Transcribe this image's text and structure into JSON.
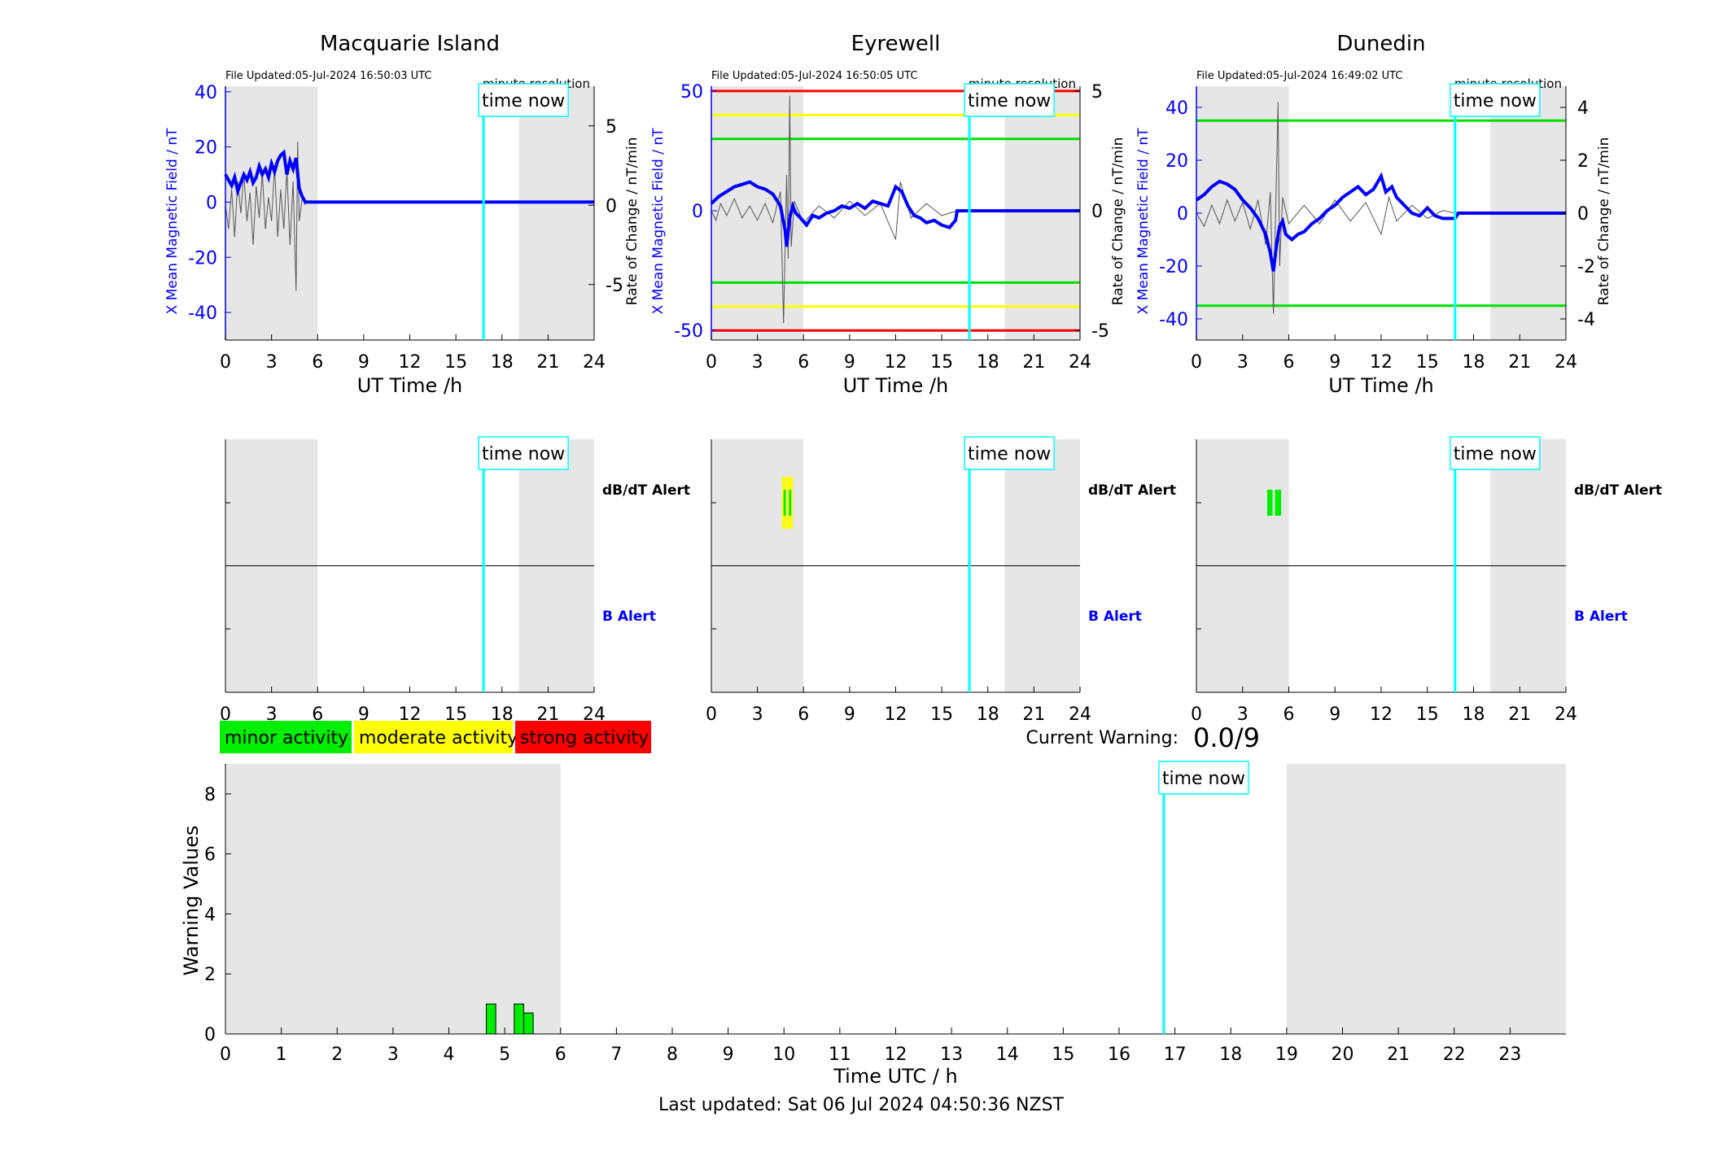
{
  "stations": [
    {
      "name": "Macquarie Island",
      "file_updated": "File Updated:05-Jul-2024 16:50:03 UTC",
      "resolution": "minute resolution",
      "time_now_label": "time now",
      "y_left_label": "X Mean Magnetic Field / nT",
      "y_right_label": "Rate of Change / nT/min",
      "x_label": "UT Time /h",
      "ylim": [
        -50,
        42
      ],
      "y_ticks": [
        40,
        20,
        0,
        -20,
        -40
      ],
      "y2lim": [
        -8.5,
        7.5
      ],
      "y2_ticks": [
        5,
        0,
        -5
      ],
      "x_ticks": [
        0,
        3,
        6,
        9,
        12,
        15,
        18,
        21,
        24
      ],
      "shaded_hours": [
        [
          0,
          6
        ],
        [
          19.1,
          24
        ]
      ],
      "time_now_hour": 16.8,
      "thresholds": [],
      "field_series": [
        [
          0,
          10
        ],
        [
          0.2,
          8
        ],
        [
          0.4,
          6
        ],
        [
          0.6,
          9
        ],
        [
          0.8,
          4
        ],
        [
          1.0,
          7
        ],
        [
          1.2,
          10
        ],
        [
          1.4,
          8
        ],
        [
          1.6,
          11
        ],
        [
          1.8,
          7
        ],
        [
          2.0,
          9
        ],
        [
          2.2,
          13
        ],
        [
          2.4,
          10
        ],
        [
          2.6,
          12
        ],
        [
          2.8,
          9
        ],
        [
          3.0,
          14
        ],
        [
          3.2,
          11
        ],
        [
          3.4,
          15
        ],
        [
          3.6,
          17
        ],
        [
          3.8,
          18
        ],
        [
          4.0,
          10
        ],
        [
          4.2,
          15
        ],
        [
          4.4,
          12
        ],
        [
          4.6,
          16
        ],
        [
          4.8,
          5
        ],
        [
          5.0,
          2
        ],
        [
          5.2,
          0
        ],
        [
          24,
          0
        ]
      ],
      "rate_series": [
        [
          0,
          0
        ],
        [
          0.2,
          -1.5
        ],
        [
          0.4,
          1
        ],
        [
          0.6,
          -2
        ],
        [
          0.8,
          1.5
        ],
        [
          1.0,
          -0.5
        ],
        [
          1.2,
          2
        ],
        [
          1.4,
          -1
        ],
        [
          1.6,
          0.8
        ],
        [
          1.8,
          -2.5
        ],
        [
          2.0,
          1.2
        ],
        [
          2.2,
          -0.8
        ],
        [
          2.4,
          2
        ],
        [
          2.6,
          -1.5
        ],
        [
          2.8,
          0.5
        ],
        [
          3.0,
          -1
        ],
        [
          3.2,
          2.5
        ],
        [
          3.4,
          -2
        ],
        [
          3.6,
          1
        ],
        [
          3.8,
          -1.5
        ],
        [
          4.0,
          2.2
        ],
        [
          4.2,
          -2.5
        ],
        [
          4.4,
          1.5
        ],
        [
          4.6,
          -5.4
        ],
        [
          4.7,
          4
        ],
        [
          4.8,
          -1
        ],
        [
          5.0,
          0.5
        ],
        [
          5.2,
          0
        ]
      ],
      "alert": {
        "dbdt_label": "dB/dT Alert",
        "b_label": "B Alert",
        "x_ticks": [
          0,
          3,
          6,
          9,
          12,
          15,
          18,
          21,
          24
        ],
        "dbdt_bars": []
      }
    },
    {
      "name": "Eyrewell",
      "file_updated": "File Updated:05-Jul-2024 16:50:05 UTC",
      "resolution": "minute resolution",
      "time_now_label": "time now",
      "y_left_label": "X Mean Magnetic Field / nT",
      "y_right_label": "Rate of Change / nT/min",
      "x_label": "UT Time /h",
      "ylim": [
        -54,
        52
      ],
      "y_ticks": [
        50,
        0,
        -50
      ],
      "y2lim": [
        -5.4,
        5.2
      ],
      "y2_ticks": [
        5,
        0,
        -5
      ],
      "x_ticks": [
        0,
        3,
        6,
        9,
        12,
        15,
        18,
        21,
        24
      ],
      "shaded_hours": [
        [
          0,
          6
        ],
        [
          19.1,
          24
        ]
      ],
      "time_now_hour": 16.8,
      "thresholds": [
        {
          "value": 50,
          "color": "#ff0000"
        },
        {
          "value": 40,
          "color": "#ffff00"
        },
        {
          "value": 30,
          "color": "#00e000"
        },
        {
          "value": -30,
          "color": "#00e000"
        },
        {
          "value": -40,
          "color": "#ffff00"
        },
        {
          "value": -50,
          "color": "#ff0000"
        }
      ],
      "field_series": [
        [
          0,
          3
        ],
        [
          0.5,
          6
        ],
        [
          1.0,
          8
        ],
        [
          1.5,
          10
        ],
        [
          2.0,
          11
        ],
        [
          2.5,
          12
        ],
        [
          3.0,
          10
        ],
        [
          3.5,
          9
        ],
        [
          4.0,
          7
        ],
        [
          4.5,
          2
        ],
        [
          4.8,
          -8
        ],
        [
          4.9,
          -15
        ],
        [
          5.1,
          -3
        ],
        [
          5.3,
          2
        ],
        [
          5.5,
          -1
        ],
        [
          5.8,
          -3
        ],
        [
          6.2,
          -6
        ],
        [
          6.6,
          -2
        ],
        [
          7.0,
          -3
        ],
        [
          7.5,
          -1
        ],
        [
          8.0,
          0
        ],
        [
          8.5,
          2
        ],
        [
          9.0,
          1
        ],
        [
          9.5,
          3
        ],
        [
          10.0,
          1
        ],
        [
          10.5,
          4
        ],
        [
          11.0,
          3
        ],
        [
          11.5,
          2
        ],
        [
          12.0,
          10
        ],
        [
          12.4,
          8
        ],
        [
          12.8,
          2
        ],
        [
          13.2,
          -2
        ],
        [
          13.6,
          -3
        ],
        [
          14.0,
          -5
        ],
        [
          14.5,
          -4
        ],
        [
          15.0,
          -6
        ],
        [
          15.5,
          -7
        ],
        [
          15.9,
          -4
        ],
        [
          16.0,
          0
        ],
        [
          24,
          0
        ]
      ],
      "rate_series": [
        [
          0,
          0
        ],
        [
          0.3,
          -0.4
        ],
        [
          0.6,
          0.3
        ],
        [
          1.0,
          -0.2
        ],
        [
          1.5,
          0.5
        ],
        [
          2.0,
          -0.3
        ],
        [
          2.5,
          0.2
        ],
        [
          3.0,
          -0.4
        ],
        [
          3.5,
          0.3
        ],
        [
          4.0,
          -0.5
        ],
        [
          4.5,
          0.8
        ],
        [
          4.7,
          -4.7
        ],
        [
          4.9,
          1.5
        ],
        [
          5.0,
          -2
        ],
        [
          5.1,
          4.8
        ],
        [
          5.2,
          -1.5
        ],
        [
          5.4,
          0.4
        ],
        [
          6.0,
          -0.5
        ],
        [
          7.0,
          0.2
        ],
        [
          8.0,
          -0.3
        ],
        [
          9.0,
          0.4
        ],
        [
          10.0,
          -0.2
        ],
        [
          11.0,
          0.3
        ],
        [
          12.0,
          -1.2
        ],
        [
          12.3,
          1.2
        ],
        [
          13.0,
          -0.3
        ],
        [
          14.0,
          0.3
        ],
        [
          15.0,
          -0.2
        ],
        [
          16.0,
          0
        ]
      ],
      "alert": {
        "dbdt_label": "dB/dT Alert",
        "b_label": "B Alert",
        "x_ticks": [
          0,
          3,
          6,
          9,
          12,
          15,
          18,
          21,
          24
        ],
        "dbdt_bars": [
          {
            "start": 4.6,
            "end": 4.9,
            "level": "moderate"
          },
          {
            "start": 4.95,
            "end": 5.3,
            "level": "moderate"
          },
          {
            "start": 4.7,
            "end": 4.85,
            "level": "minor"
          },
          {
            "start": 5.05,
            "end": 5.2,
            "level": "minor"
          }
        ]
      }
    },
    {
      "name": "Dunedin",
      "file_updated": "File Updated:05-Jul-2024 16:49:02 UTC",
      "resolution": "minute resolution",
      "time_now_label": "time now",
      "y_left_label": "X Mean Magnetic Field / nT",
      "y_right_label": "Rate of Change / nT/min",
      "x_label": "UT Time /h",
      "ylim": [
        -48,
        48
      ],
      "y_ticks": [
        40,
        20,
        0,
        -20,
        -40
      ],
      "y2lim": [
        -4.8,
        4.8
      ],
      "y2_ticks": [
        4,
        2,
        0,
        -2,
        -4
      ],
      "x_ticks": [
        0,
        3,
        6,
        9,
        12,
        15,
        18,
        21,
        24
      ],
      "shaded_hours": [
        [
          0,
          6
        ],
        [
          19.1,
          24
        ]
      ],
      "time_now_hour": 16.8,
      "thresholds": [
        {
          "value": 35,
          "color": "#00e000"
        },
        {
          "value": -35,
          "color": "#00e000"
        }
      ],
      "field_series": [
        [
          0,
          5
        ],
        [
          0.5,
          7
        ],
        [
          1.0,
          10
        ],
        [
          1.5,
          12
        ],
        [
          2.0,
          11
        ],
        [
          2.5,
          9
        ],
        [
          3.0,
          5
        ],
        [
          3.5,
          2
        ],
        [
          4.0,
          -2
        ],
        [
          4.5,
          -8
        ],
        [
          4.8,
          -15
        ],
        [
          5.0,
          -22
        ],
        [
          5.2,
          -12
        ],
        [
          5.4,
          -5
        ],
        [
          5.6,
          -3
        ],
        [
          5.8,
          -8
        ],
        [
          6.2,
          -10
        ],
        [
          6.6,
          -8
        ],
        [
          7.0,
          -7
        ],
        [
          7.5,
          -4
        ],
        [
          8.0,
          -2
        ],
        [
          8.5,
          1
        ],
        [
          9.0,
          3
        ],
        [
          9.5,
          6
        ],
        [
          10.0,
          8
        ],
        [
          10.5,
          10
        ],
        [
          11.0,
          7
        ],
        [
          11.5,
          9
        ],
        [
          12.0,
          14
        ],
        [
          12.3,
          8
        ],
        [
          12.7,
          10
        ],
        [
          13.0,
          6
        ],
        [
          13.5,
          3
        ],
        [
          14.0,
          0
        ],
        [
          14.5,
          -1
        ],
        [
          15.0,
          2
        ],
        [
          15.5,
          -1
        ],
        [
          16.0,
          -2
        ],
        [
          16.8,
          -2
        ],
        [
          17,
          0
        ],
        [
          24,
          0
        ]
      ],
      "rate_series": [
        [
          0,
          0
        ],
        [
          0.5,
          -0.5
        ],
        [
          1.0,
          0.3
        ],
        [
          1.5,
          -0.4
        ],
        [
          2.0,
          0.5
        ],
        [
          2.5,
          -0.3
        ],
        [
          3.0,
          0.4
        ],
        [
          3.5,
          -0.6
        ],
        [
          4.0,
          0.5
        ],
        [
          4.5,
          -1.2
        ],
        [
          4.8,
          0.8
        ],
        [
          5.0,
          -3.8
        ],
        [
          5.2,
          1.5
        ],
        [
          5.3,
          4.2
        ],
        [
          5.4,
          -2
        ],
        [
          5.6,
          0.6
        ],
        [
          6.0,
          -0.4
        ],
        [
          7.0,
          0.3
        ],
        [
          8.0,
          -0.4
        ],
        [
          9.0,
          0.5
        ],
        [
          10.0,
          -0.3
        ],
        [
          11.0,
          0.4
        ],
        [
          12.0,
          -0.8
        ],
        [
          12.5,
          0.6
        ],
        [
          13.0,
          -0.3
        ],
        [
          14.0,
          0.3
        ],
        [
          15.0,
          -0.2
        ],
        [
          16.0,
          0.1
        ],
        [
          16.8,
          0
        ]
      ],
      "alert": {
        "dbdt_label": "dB/dT Alert",
        "b_label": "B Alert",
        "x_ticks": [
          0,
          3,
          6,
          9,
          12,
          15,
          18,
          21,
          24
        ],
        "dbdt_bars": [
          {
            "start": 4.6,
            "end": 4.95,
            "level": "minor"
          },
          {
            "start": 5.1,
            "end": 5.5,
            "level": "minor"
          }
        ]
      }
    }
  ],
  "legend": {
    "items": [
      {
        "label": "minor activity",
        "color": "#00ee00"
      },
      {
        "label": "moderate activity",
        "color": "#ffff00"
      },
      {
        "label": "strong activity",
        "color": "#ff0000"
      }
    ]
  },
  "current_warning": {
    "label": "Current Warning:",
    "value": "0.0/9"
  },
  "chart_data": {
    "type": "bar",
    "ylabel": "Warning Values",
    "xlabel": "Time UTC / h",
    "ylim": [
      0,
      9
    ],
    "y_ticks": [
      0,
      2,
      4,
      6,
      8
    ],
    "xlim": [
      0,
      24
    ],
    "x_ticks": [
      0,
      1,
      2,
      3,
      4,
      5,
      6,
      7,
      8,
      9,
      10,
      11,
      12,
      13,
      14,
      15,
      16,
      17,
      18,
      19,
      20,
      21,
      22,
      23
    ],
    "shaded_hours": [
      [
        0,
        6
      ],
      [
        19,
        24
      ]
    ],
    "time_now_hour": 16.8,
    "time_now_label": "time now",
    "bars": [
      {
        "x": 4.67,
        "width": 0.17,
        "value": 1
      },
      {
        "x": 5.17,
        "width": 0.17,
        "value": 1
      },
      {
        "x": 5.34,
        "width": 0.17,
        "value": 0.7
      }
    ],
    "bar_color": "#00ee00"
  },
  "footer": {
    "last_updated": "Last updated: Sat 06 Jul 2024 04:50:36 NZST"
  },
  "colors": {
    "field": "#0000ff",
    "rate": "#555555",
    "shade": "#e6e6e6",
    "time_now": "#00ffff",
    "axis_blue": "#0000ff"
  }
}
